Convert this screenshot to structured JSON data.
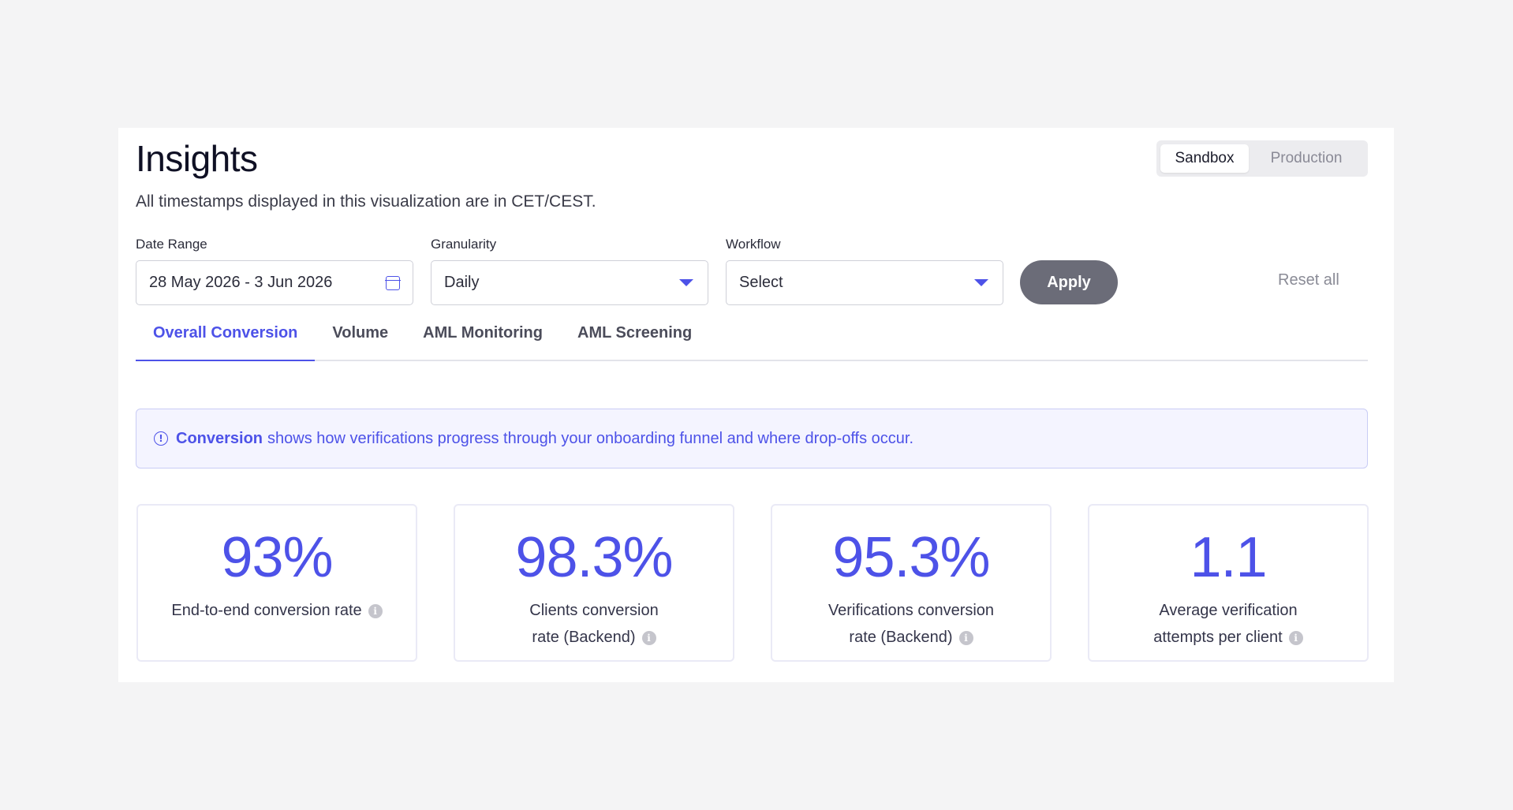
{
  "page": {
    "title": "Insights",
    "subtitle": "All timestamps displayed in this visualization are in CET/CEST."
  },
  "environment": {
    "options": [
      "Sandbox",
      "Production"
    ],
    "selected": "Sandbox"
  },
  "filters": {
    "date_range": {
      "label": "Date Range",
      "value": "28 May 2026 - 3 Jun 2026",
      "icon": "calendar-icon"
    },
    "granularity": {
      "label": "Granularity",
      "value": "Daily"
    },
    "workflow": {
      "label": "Workflow",
      "value": "Select"
    },
    "apply_label": "Apply",
    "reset_label": "Reset all"
  },
  "tabs": [
    {
      "label": "Overall Conversion",
      "active": true
    },
    {
      "label": "Volume",
      "active": false
    },
    {
      "label": "AML Monitoring",
      "active": false
    },
    {
      "label": "AML Screening",
      "active": false
    }
  ],
  "info_banner": {
    "strong": "Conversion",
    "text": "shows how verifications progress through your onboarding funnel and where drop-offs occur."
  },
  "metrics": [
    {
      "value": "93%",
      "label": "End-to-end conversion rate"
    },
    {
      "value": "98.3%",
      "label": "Clients conversion rate (Backend)"
    },
    {
      "value": "95.3%",
      "label": "Verifications conversion rate (Backend)"
    },
    {
      "value": "1.1",
      "label": "Average verification attempts per client"
    }
  ],
  "colors": {
    "accent": "#4d52e8",
    "apply_button": "#6b6c78",
    "banner_bg": "#f4f4ff"
  }
}
